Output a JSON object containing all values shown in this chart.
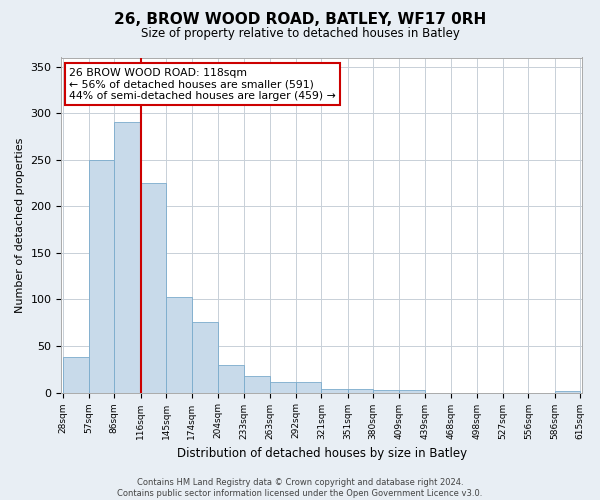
{
  "title": "26, BROW WOOD ROAD, BATLEY, WF17 0RH",
  "subtitle": "Size of property relative to detached houses in Batley",
  "xlabel": "Distribution of detached houses by size in Batley",
  "ylabel": "Number of detached properties",
  "bar_values": [
    38,
    250,
    291,
    225,
    103,
    76,
    30,
    18,
    11,
    11,
    4,
    4,
    3,
    3,
    0,
    0,
    0,
    0,
    0,
    2
  ],
  "bin_labels": [
    "28sqm",
    "57sqm",
    "86sqm",
    "116sqm",
    "145sqm",
    "174sqm",
    "204sqm",
    "233sqm",
    "263sqm",
    "292sqm",
    "321sqm",
    "351sqm",
    "380sqm",
    "409sqm",
    "439sqm",
    "468sqm",
    "498sqm",
    "527sqm",
    "556sqm",
    "586sqm",
    "615sqm"
  ],
  "bar_color": "#c8daea",
  "bar_edge_color": "#7aabcc",
  "property_line_color": "#cc0000",
  "annotation_line1": "26 BROW WOOD ROAD: 118sqm",
  "annotation_line2": "← 56% of detached houses are smaller (591)",
  "annotation_line3": "44% of semi-detached houses are larger (459) →",
  "annotation_box_facecolor": "#ffffff",
  "annotation_box_edgecolor": "#cc0000",
  "ylim": [
    0,
    360
  ],
  "yticks": [
    0,
    50,
    100,
    150,
    200,
    250,
    300,
    350
  ],
  "footer_text": "Contains HM Land Registry data © Crown copyright and database right 2024.\nContains public sector information licensed under the Open Government Licence v3.0.",
  "bg_color": "#e8eef4",
  "plot_bg_color": "#ffffff",
  "grid_color": "#c8d0d8"
}
